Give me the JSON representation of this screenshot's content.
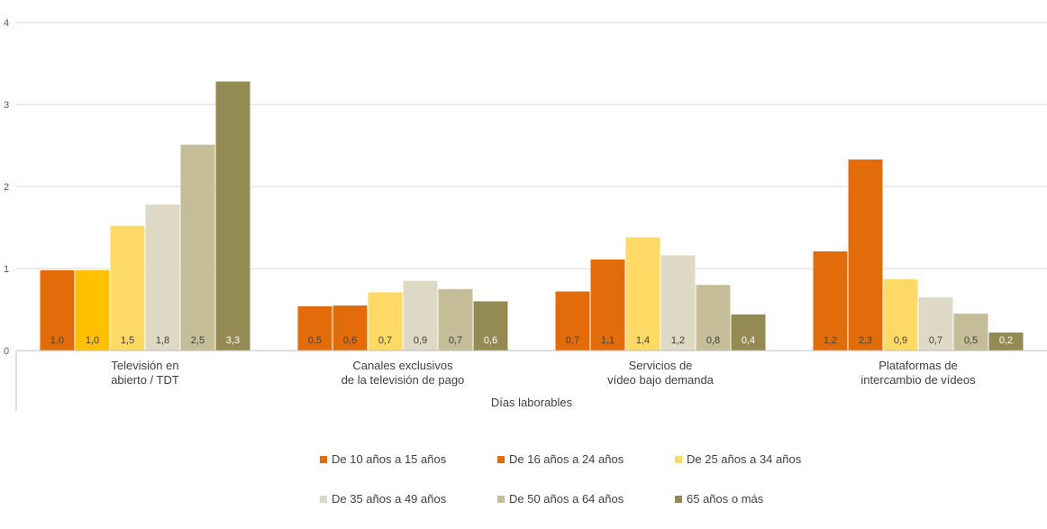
{
  "chart_data": {
    "type": "bar",
    "xlabel": "Días laborables",
    "ylim": [
      0,
      4
    ],
    "yticks": [
      0,
      1,
      2,
      3,
      4
    ],
    "grid": true,
    "legend_placement": "bottom",
    "categories": [
      [
        "Televisión en",
        "abierto / TDT"
      ],
      [
        "Canales exclusivos",
        "de la televisión de pago"
      ],
      [
        "Servicios de",
        "vídeo bajo demanda"
      ],
      [
        "Plataformas de",
        "intercambio de vídeos"
      ]
    ],
    "series": [
      {
        "name": "De 10 años a 15 años",
        "color": "#E36C0A",
        "values": [
          0.98,
          0.54,
          0.72,
          1.21
        ],
        "labels": [
          "1,0",
          "0,5",
          "0,7",
          "1,2"
        ]
      },
      {
        "name": "De 16 años a 24 años",
        "color": "#E36C0A",
        "values": [
          0.98,
          0.55,
          1.11,
          2.33
        ],
        "labels": [
          "1,0",
          "0,6",
          "1,1",
          "2,3"
        ]
      },
      {
        "name": "De 25 años a 34 años",
        "color": "#FFD966",
        "values": [
          1.52,
          0.71,
          1.38,
          0.87
        ],
        "labels": [
          "1,5",
          "0,7",
          "1,4",
          "0,9"
        ]
      },
      {
        "name": "De 35 años a 49 años",
        "color": "#DDD9C4",
        "values": [
          1.78,
          0.85,
          1.16,
          0.65
        ],
        "labels": [
          "1,8",
          "0,9",
          "1,2",
          "0,7"
        ]
      },
      {
        "name": "De 50 años a 64 años",
        "color": "#C4BD97",
        "values": [
          2.51,
          0.75,
          0.8,
          0.45
        ],
        "labels": [
          "2,5",
          "0,7",
          "0,8",
          "0,5"
        ]
      },
      {
        "name": "65 años o más",
        "color": "#948A54",
        "values": [
          3.28,
          0.6,
          0.44,
          0.22
        ],
        "labels": [
          "3,3",
          "0,6",
          "0,4",
          "0,2"
        ]
      }
    ],
    "bar_overrides": [
      {
        "series": 1,
        "category": 0,
        "color": "#FFC000"
      }
    ]
  }
}
